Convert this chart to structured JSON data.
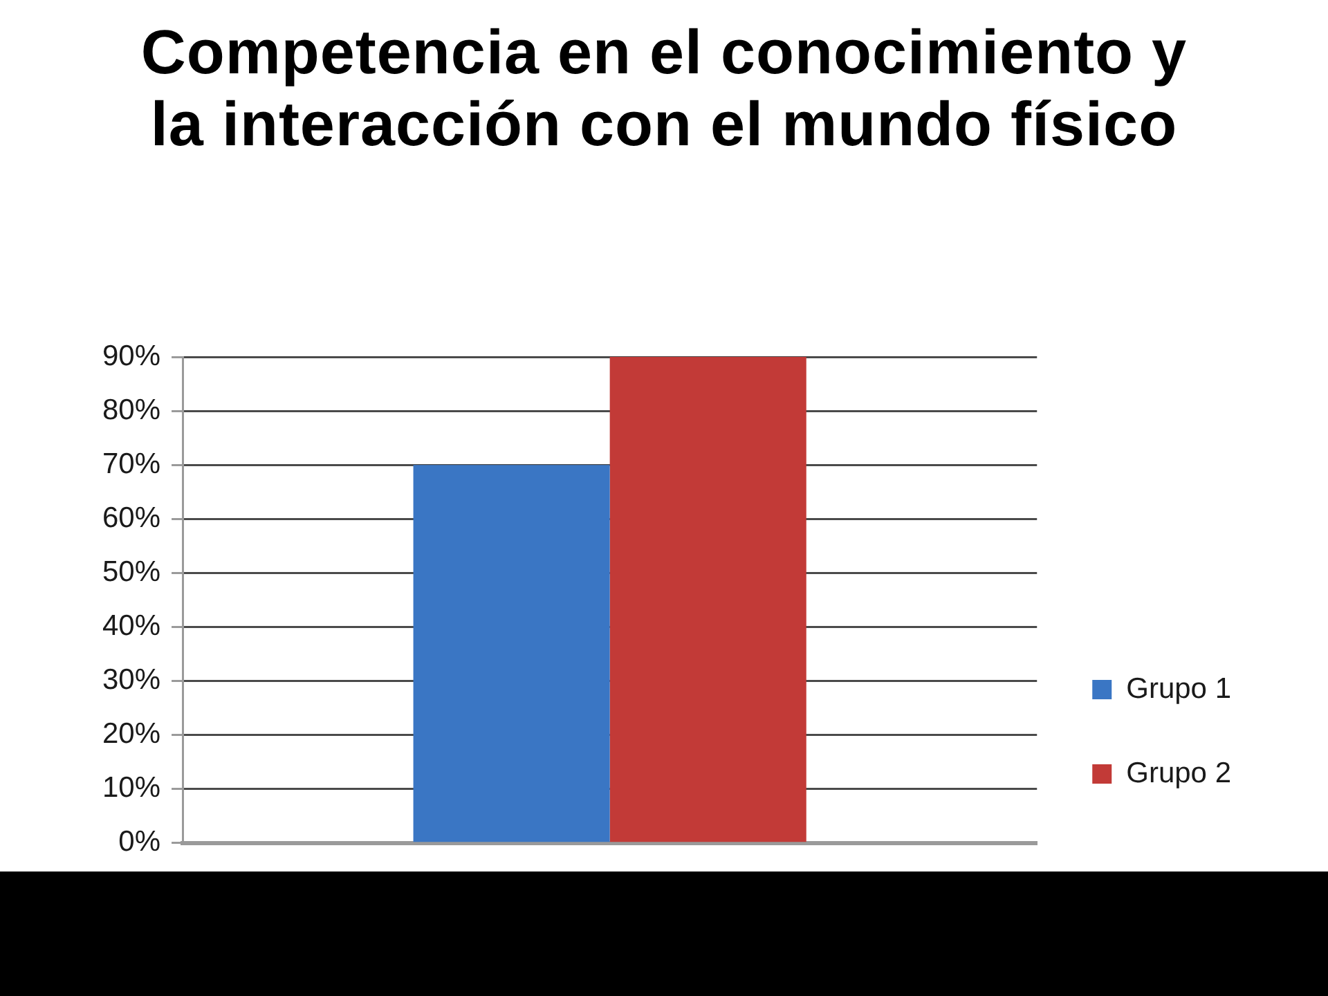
{
  "chart_data": {
    "type": "bar",
    "title": "Competencia en el conocimiento y la interacción con el mundo físico",
    "categories": [
      null
    ],
    "series": [
      {
        "name": "Grupo 1",
        "color": "#3a76c4",
        "values": [
          70
        ]
      },
      {
        "name": "Grupo 2",
        "color": "#c23a37",
        "values": [
          90
        ]
      }
    ],
    "ylim": [
      0,
      90
    ],
    "yticks": [
      {
        "value": 0,
        "label": "0%"
      },
      {
        "value": 10,
        "label": "10%"
      },
      {
        "value": 20,
        "label": "20%"
      },
      {
        "value": 30,
        "label": "30%"
      },
      {
        "value": 40,
        "label": "40%"
      },
      {
        "value": 50,
        "label": "50%"
      },
      {
        "value": 60,
        "label": "60%"
      },
      {
        "value": 70,
        "label": "70%"
      },
      {
        "value": 80,
        "label": "80%"
      },
      {
        "value": 90,
        "label": "90%"
      }
    ],
    "grid": "y",
    "legend": "bottom right"
  }
}
